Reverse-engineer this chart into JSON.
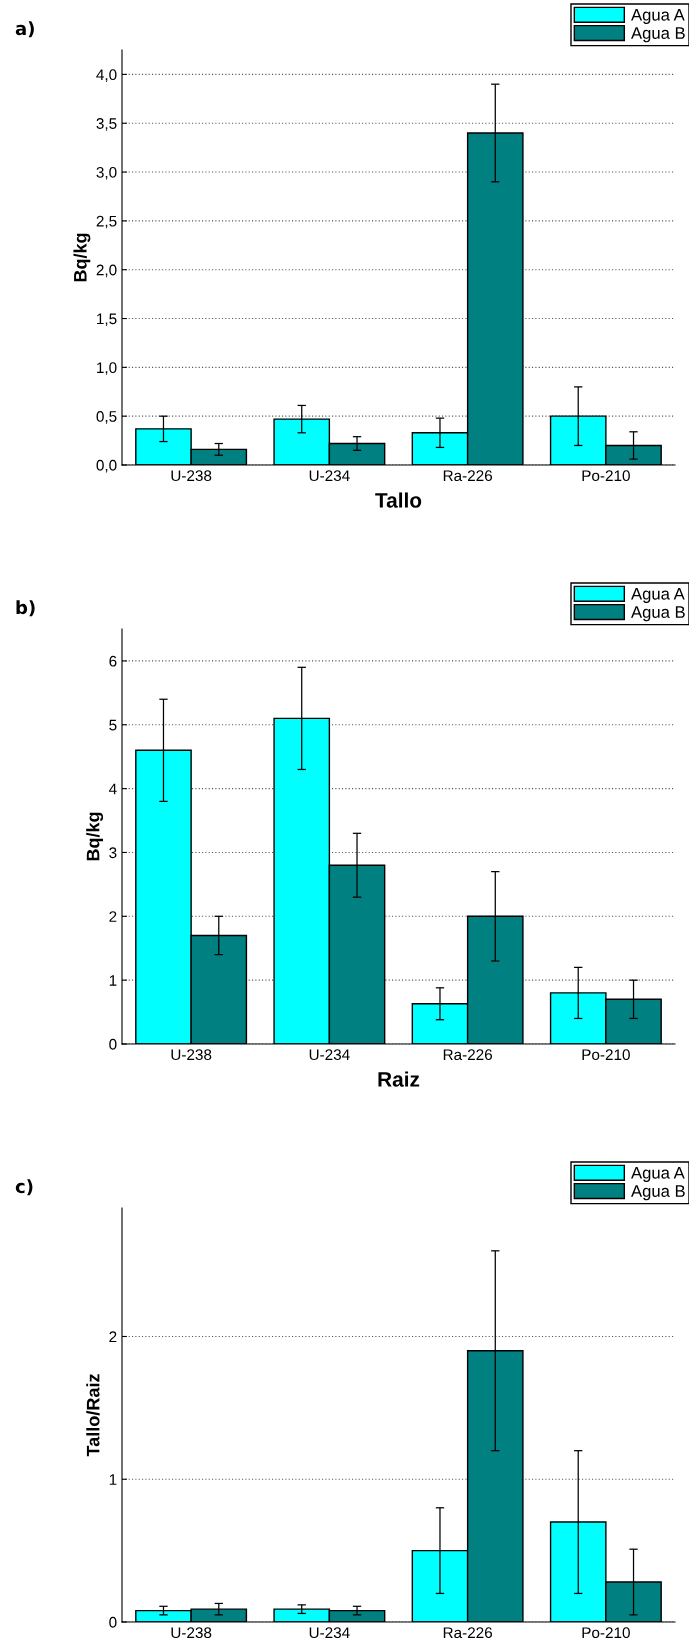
{
  "chart_data": [
    {
      "type": "bar",
      "title": "a)",
      "xlabel": "Tallo",
      "ylabel": "Bq/kg",
      "categories": [
        "U-238",
        "U-234",
        "Ra-226",
        "Po-210"
      ],
      "series": [
        {
          "name": "Agua A",
          "color": "#00ffff",
          "values": [
            0.37,
            0.47,
            0.33,
            0.5
          ],
          "errors": [
            [
              0.24,
              0.5
            ],
            [
              0.33,
              0.61
            ],
            [
              0.18,
              0.48
            ],
            [
              0.2,
              0.8
            ]
          ]
        },
        {
          "name": "Agua B",
          "color": "#008080",
          "values": [
            0.16,
            0.22,
            3.4,
            0.2
          ],
          "errors": [
            [
              0.1,
              0.22
            ],
            [
              0.15,
              0.29
            ],
            [
              2.9,
              3.9
            ],
            [
              0.06,
              0.34
            ]
          ]
        }
      ],
      "ylim": [
        0,
        4.25
      ],
      "yticks": [
        {
          "value": 0,
          "label": "0,0"
        },
        {
          "value": 0.5,
          "label": "0,5"
        },
        {
          "value": 1,
          "label": "1,0"
        },
        {
          "value": 1.5,
          "label": "1,5"
        },
        {
          "value": 2,
          "label": "2,0"
        },
        {
          "value": 2.5,
          "label": "2,5"
        },
        {
          "value": 3,
          "label": "3,0"
        },
        {
          "value": 3.5,
          "label": "3,5"
        },
        {
          "value": 4,
          "label": "4,0"
        }
      ],
      "grid": "y",
      "legend": "top right"
    },
    {
      "type": "bar",
      "title": "b)",
      "xlabel": "Raiz",
      "ylabel": "Bq/kg",
      "categories": [
        "U-238",
        "U-234",
        "Ra-226",
        "Po-210"
      ],
      "series": [
        {
          "name": "Agua A",
          "color": "#00ffff",
          "values": [
            4.6,
            5.1,
            0.63,
            0.8
          ],
          "errors": [
            [
              3.8,
              5.4
            ],
            [
              4.3,
              5.9
            ],
            [
              0.38,
              0.88
            ],
            [
              0.4,
              1.2
            ]
          ]
        },
        {
          "name": "Agua B",
          "color": "#008080",
          "values": [
            1.7,
            2.8,
            2.0,
            0.7
          ],
          "errors": [
            [
              1.4,
              2.0
            ],
            [
              2.3,
              3.3
            ],
            [
              1.3,
              2.7
            ],
            [
              0.4,
              1.0
            ]
          ]
        }
      ],
      "ylim": [
        0,
        6.5
      ],
      "yticks": [
        0,
        1,
        2,
        3,
        4,
        5,
        6
      ],
      "grid": "y",
      "legend": "top right"
    },
    {
      "type": "bar",
      "title": "c)",
      "ylabel": "Tallo/Raiz",
      "categories": [
        "U-238",
        "U-234",
        "Ra-226",
        "Po-210"
      ],
      "series": [
        {
          "name": "Agua A",
          "color": "#00ffff",
          "values": [
            0.08,
            0.09,
            0.5,
            0.7
          ],
          "errors": [
            [
              0.05,
              0.11
            ],
            [
              0.06,
              0.12
            ],
            [
              0.2,
              0.8
            ],
            [
              0.2,
              1.2
            ]
          ]
        },
        {
          "name": "Agua B",
          "color": "#008080",
          "values": [
            0.09,
            0.08,
            1.9,
            0.28
          ],
          "errors": [
            [
              0.05,
              0.13
            ],
            [
              0.05,
              0.11
            ],
            [
              1.2,
              2.6
            ],
            [
              0.05,
              0.51
            ]
          ]
        }
      ],
      "ylim": [
        0,
        2.9
      ],
      "yticks": [
        0,
        1,
        2
      ],
      "grid": "y",
      "legend": "top right"
    }
  ]
}
